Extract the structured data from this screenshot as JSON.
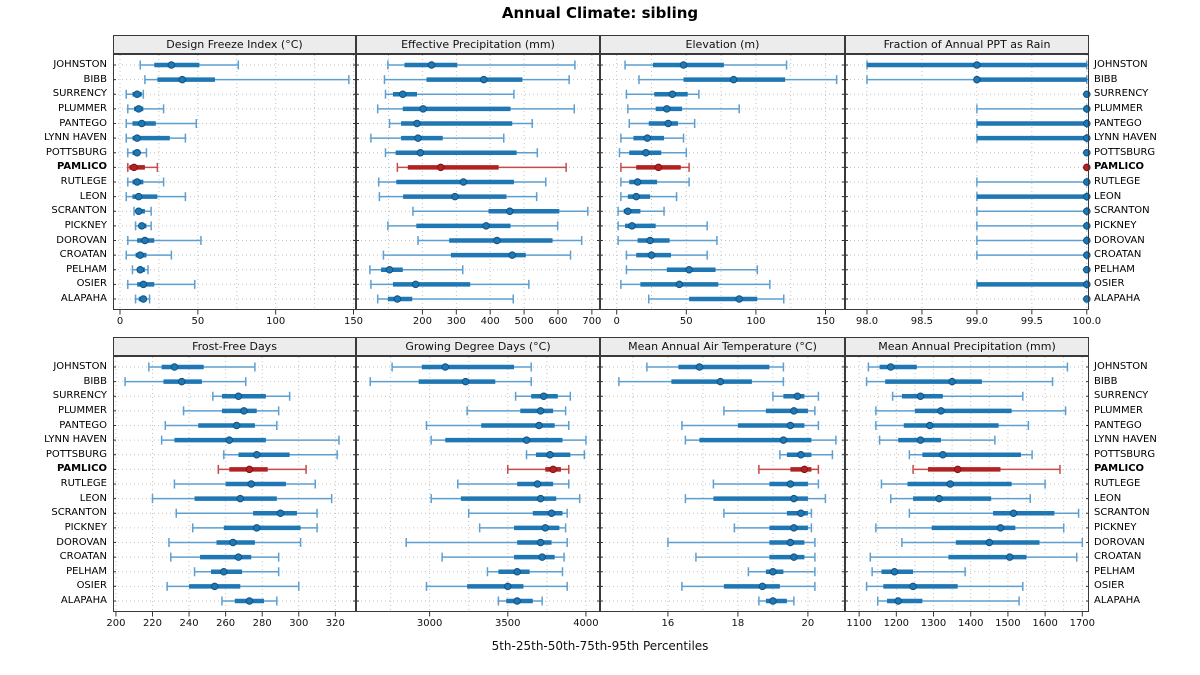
{
  "title": "Annual Climate: sibling",
  "caption": "5th-25th-50th-75th-95th Percentiles",
  "percentile_labels": [
    "5th",
    "25th",
    "50th",
    "75th",
    "95th"
  ],
  "sites": [
    "JOHNSTON",
    "BIBB",
    "SURRENCY",
    "PLUMMER",
    "PANTEGO",
    "LYNN HAVEN",
    "POTTSBURG",
    "PAMLICO",
    "RUTLEGE",
    "LEON",
    "SCRANTON",
    "PICKNEY",
    "DOROVAN",
    "CROATAN",
    "PELHAM",
    "OSIER",
    "ALAPAHA"
  ],
  "highlight_site": "PAMLICO",
  "colors": {
    "series": "#1f77b4",
    "series_whisker": "#5d9fd0",
    "series_dot_stroke": "#10527f",
    "highlight": "#b22222",
    "highlight_whisker": "#c24b4b",
    "highlight_dot_stroke": "#7f1414",
    "strip_bg": "#ececec",
    "grid": "#c2c2c2",
    "border": "#3a3a3a",
    "tick": "#333333"
  },
  "chart_data": {
    "type": "dotplot-trellis",
    "note": "each site row = [p5, p25, p50, p75, p95]",
    "panels": [
      {
        "title": "Design Freeze Index (°C)",
        "row": 0,
        "col": 0,
        "xlim": [
          -4.5,
          151.6
        ],
        "ticks": [
          0,
          50,
          100,
          150
        ],
        "tick_labels": [
          "0",
          "50",
          "100",
          "150"
        ],
        "grid_start": 0,
        "grid_step": 25,
        "values": [
          [
            13,
            22,
            33,
            51,
            76
          ],
          [
            16,
            24,
            40,
            61,
            147
          ],
          [
            4,
            8,
            11,
            14,
            15
          ],
          [
            5,
            9,
            12,
            15,
            28
          ],
          [
            4,
            8,
            14,
            23,
            49
          ],
          [
            4,
            8,
            11,
            32,
            42
          ],
          [
            5,
            8,
            11,
            13,
            17
          ],
          [
            5,
            6,
            9,
            16,
            24
          ],
          [
            5,
            8,
            11,
            15,
            28
          ],
          [
            4,
            8,
            12,
            24,
            42
          ],
          [
            9,
            10,
            12,
            16,
            20
          ],
          [
            10,
            12,
            14,
            17,
            20
          ],
          [
            5,
            11,
            16,
            22,
            52
          ],
          [
            4,
            10,
            13,
            17,
            33
          ],
          [
            8,
            11,
            13,
            16,
            18
          ],
          [
            5,
            11,
            15,
            22,
            48
          ],
          [
            10,
            12,
            15,
            17,
            19
          ]
        ]
      },
      {
        "title": "Effective Precipitation (mm)",
        "row": 0,
        "col": 1,
        "xlim": [
          4,
          724
        ],
        "ticks": [
          200,
          300,
          400,
          500,
          600,
          700
        ],
        "tick_labels": [
          "200",
          "300",
          "400",
          "500",
          "600",
          "700"
        ],
        "grid_start": 100,
        "grid_step": 100,
        "values": [
          [
            98,
            147,
            227,
            303,
            650
          ],
          [
            88,
            212,
            381,
            495,
            633
          ],
          [
            91,
            113,
            142,
            184,
            470
          ],
          [
            68,
            142,
            202,
            460,
            648
          ],
          [
            103,
            137,
            184,
            465,
            524
          ],
          [
            48,
            137,
            187,
            260,
            440
          ],
          [
            91,
            121,
            194,
            478,
            539
          ],
          [
            126,
            157,
            254,
            425,
            624
          ],
          [
            71,
            123,
            321,
            470,
            564
          ],
          [
            73,
            143,
            296,
            448,
            537
          ],
          [
            172,
            395,
            458,
            604,
            688
          ],
          [
            98,
            182,
            388,
            460,
            599
          ],
          [
            187,
            279,
            420,
            584,
            670
          ],
          [
            85,
            284,
            465,
            505,
            637
          ],
          [
            45,
            78,
            103,
            142,
            319
          ],
          [
            48,
            113,
            180,
            341,
            514
          ],
          [
            68,
            98,
            126,
            170,
            468
          ]
        ]
      },
      {
        "title": "Elevation (m)",
        "row": 0,
        "col": 2,
        "xlim": [
          -12,
          164
        ],
        "ticks": [
          0,
          50,
          100,
          150
        ],
        "tick_labels": [
          "0",
          "50",
          "100",
          "150"
        ],
        "grid_start": 0,
        "grid_step": 25,
        "values": [
          [
            6,
            26,
            48,
            77,
            122
          ],
          [
            16,
            48,
            84,
            121,
            158
          ],
          [
            7,
            27,
            40,
            51,
            59
          ],
          [
            8,
            28,
            36,
            47,
            88
          ],
          [
            9,
            23,
            37,
            44,
            56
          ],
          [
            3,
            12,
            22,
            34,
            48
          ],
          [
            2,
            9,
            21,
            32,
            50
          ],
          [
            3,
            14,
            30,
            46,
            52
          ],
          [
            3,
            9,
            15,
            29,
            52
          ],
          [
            3,
            8,
            14,
            24,
            43
          ],
          [
            1,
            5,
            8,
            17,
            34
          ],
          [
            1,
            6,
            11,
            28,
            65
          ],
          [
            1,
            15,
            24,
            38,
            72
          ],
          [
            7,
            14,
            25,
            39,
            65
          ],
          [
            7,
            36,
            52,
            71,
            101
          ],
          [
            3,
            17,
            45,
            73,
            110
          ],
          [
            23,
            52,
            88,
            101,
            120
          ]
        ]
      },
      {
        "title": "Fraction of Annual PPT as Rain",
        "row": 0,
        "col": 3,
        "xlim": [
          97.8,
          100.02
        ],
        "ticks": [
          98.0,
          98.5,
          99.0,
          99.5,
          100.0
        ],
        "tick_labels": [
          "98.0",
          "98.5",
          "99.0",
          "99.5",
          "100.0"
        ],
        "grid_start": 98.0,
        "grid_step": 0.5,
        "values": [
          [
            98.0,
            98.0,
            99.0,
            100.0,
            100.0
          ],
          [
            98.0,
            99.0,
            99.0,
            100.0,
            100.0
          ],
          [
            100,
            100,
            100,
            100,
            100
          ],
          [
            99.0,
            100.0,
            100.0,
            100.0,
            100.0
          ],
          [
            99.0,
            99.0,
            100.0,
            100.0,
            100.0
          ],
          [
            99.0,
            99.0,
            100.0,
            100.0,
            100.0
          ],
          [
            100,
            100,
            100,
            100,
            100
          ],
          [
            100,
            100,
            100,
            100,
            100
          ],
          [
            99.0,
            100.0,
            100.0,
            100.0,
            100.0
          ],
          [
            99.0,
            99.0,
            100.0,
            100.0,
            100.0
          ],
          [
            99.0,
            100.0,
            100.0,
            100.0,
            100.0
          ],
          [
            99.0,
            100.0,
            100.0,
            100.0,
            100.0
          ],
          [
            99.0,
            100.0,
            100.0,
            100.0,
            100.0
          ],
          [
            99.0,
            100.0,
            100.0,
            100.0,
            100.0
          ],
          [
            100,
            100,
            100,
            100,
            100
          ],
          [
            99.0,
            99.0,
            100.0,
            100.0,
            100.0
          ],
          [
            100,
            100,
            100,
            100,
            100
          ]
        ]
      },
      {
        "title": "Frost-Free Days",
        "row": 1,
        "col": 0,
        "xlim": [
          198.4,
          331.3
        ],
        "ticks": [
          200,
          220,
          240,
          260,
          280,
          300,
          320
        ],
        "tick_labels": [
          "200",
          "220",
          "240",
          "260",
          "280",
          "300",
          "320"
        ],
        "grid_start": 200,
        "grid_step": 20,
        "values": [
          [
            218,
            225,
            232,
            248,
            276
          ],
          [
            205,
            226,
            236,
            247,
            271
          ],
          [
            253,
            258,
            267,
            282,
            295
          ],
          [
            237,
            258,
            270,
            277,
            289
          ],
          [
            227,
            245,
            266,
            276,
            288
          ],
          [
            225,
            232,
            262,
            282,
            322
          ],
          [
            259,
            267,
            277,
            295,
            321
          ],
          [
            256,
            262,
            273,
            283,
            304
          ],
          [
            232,
            260,
            274,
            293,
            309
          ],
          [
            220,
            243,
            268,
            288,
            318
          ],
          [
            233,
            275,
            290,
            299,
            310
          ],
          [
            242,
            259,
            277,
            301,
            310
          ],
          [
            229,
            255,
            264,
            276,
            301
          ],
          [
            230,
            246,
            267,
            274,
            289
          ],
          [
            243,
            252,
            259,
            269,
            289
          ],
          [
            228,
            240,
            254,
            268,
            300
          ],
          [
            258,
            265,
            273,
            281,
            288
          ]
        ]
      },
      {
        "title": "Growing Degree Days (°C)",
        "row": 1,
        "col": 1,
        "xlim": [
          2529,
          4090
        ],
        "ticks": [
          3000,
          3500,
          4000
        ],
        "tick_labels": [
          "3000",
          "3500",
          "4000"
        ],
        "grid_start": 2750,
        "grid_step": 250,
        "values": [
          [
            2760,
            2950,
            3100,
            3540,
            3650
          ],
          [
            2620,
            2930,
            3230,
            3420,
            3650
          ],
          [
            3550,
            3650,
            3730,
            3820,
            3900
          ],
          [
            3240,
            3580,
            3710,
            3790,
            3870
          ],
          [
            2980,
            3330,
            3700,
            3800,
            3890
          ],
          [
            3010,
            3100,
            3620,
            3850,
            4000
          ],
          [
            3620,
            3680,
            3770,
            3900,
            3990
          ],
          [
            3500,
            3740,
            3790,
            3840,
            3890
          ],
          [
            3180,
            3560,
            3690,
            3790,
            3890
          ],
          [
            3010,
            3200,
            3710,
            3810,
            3960
          ],
          [
            3250,
            3660,
            3780,
            3850,
            3880
          ],
          [
            3320,
            3540,
            3740,
            3830,
            3870
          ],
          [
            2850,
            3560,
            3710,
            3780,
            3880
          ],
          [
            3080,
            3540,
            3720,
            3800,
            3860
          ],
          [
            3370,
            3440,
            3560,
            3640,
            3850
          ],
          [
            2980,
            3240,
            3500,
            3600,
            3880
          ],
          [
            3440,
            3490,
            3560,
            3660,
            3720
          ]
        ]
      },
      {
        "title": "Mean Annual Air Temperature (°C)",
        "row": 1,
        "col": 2,
        "xlim": [
          14.06,
          21.06
        ],
        "ticks": [
          16,
          18,
          20
        ],
        "tick_labels": [
          "16",
          "18",
          "20"
        ],
        "grid_start": 15,
        "grid_step": 1,
        "values": [
          [
            15.4,
            16.3,
            16.9,
            18.9,
            19.3
          ],
          [
            14.6,
            16.1,
            17.5,
            18.4,
            19.3
          ],
          [
            19.0,
            19.3,
            19.7,
            19.9,
            20.3
          ],
          [
            17.6,
            18.8,
            19.6,
            20.0,
            20.2
          ],
          [
            16.4,
            18.0,
            19.5,
            19.9,
            20.3
          ],
          [
            16.5,
            16.9,
            19.3,
            20.1,
            20.8
          ],
          [
            19.2,
            19.4,
            19.8,
            20.1,
            20.7
          ],
          [
            18.6,
            19.5,
            19.9,
            20.1,
            20.3
          ],
          [
            17.3,
            18.9,
            19.5,
            20.0,
            20.3
          ],
          [
            16.5,
            17.3,
            19.6,
            20.0,
            20.5
          ],
          [
            17.6,
            19.4,
            19.8,
            20.0,
            20.1
          ],
          [
            17.9,
            18.9,
            19.6,
            20.0,
            20.1
          ],
          [
            16.0,
            18.9,
            19.5,
            19.9,
            20.2
          ],
          [
            16.8,
            18.9,
            19.6,
            19.9,
            20.2
          ],
          [
            18.3,
            18.8,
            19.0,
            19.3,
            20.2
          ],
          [
            16.4,
            17.6,
            18.7,
            19.2,
            20.2
          ],
          [
            18.6,
            18.8,
            19.0,
            19.4,
            19.6
          ]
        ]
      },
      {
        "title": "Mean Annual Precipitation (mm)",
        "row": 1,
        "col": 3,
        "xlim": [
          1062,
          1718
        ],
        "ticks": [
          1100,
          1200,
          1300,
          1400,
          1500,
          1600,
          1700
        ],
        "tick_labels": [
          "1100",
          "1200",
          "1300",
          "1400",
          "1500",
          "1600",
          "1700"
        ],
        "grid_start": 1100,
        "grid_step": 50,
        "values": [
          [
            1125,
            1155,
            1185,
            1255,
            1660
          ],
          [
            1120,
            1170,
            1350,
            1430,
            1620
          ],
          [
            1190,
            1215,
            1265,
            1325,
            1540
          ],
          [
            1145,
            1250,
            1320,
            1510,
            1655
          ],
          [
            1145,
            1220,
            1290,
            1475,
            1555
          ],
          [
            1155,
            1205,
            1265,
            1320,
            1465
          ],
          [
            1235,
            1270,
            1325,
            1535,
            1565
          ],
          [
            1245,
            1285,
            1365,
            1480,
            1640
          ],
          [
            1160,
            1230,
            1345,
            1510,
            1600
          ],
          [
            1185,
            1245,
            1315,
            1455,
            1560
          ],
          [
            1235,
            1460,
            1515,
            1625,
            1690
          ],
          [
            1145,
            1295,
            1480,
            1520,
            1650
          ],
          [
            1215,
            1360,
            1450,
            1585,
            1700
          ],
          [
            1130,
            1340,
            1505,
            1550,
            1685
          ],
          [
            1135,
            1160,
            1195,
            1245,
            1385
          ],
          [
            1120,
            1165,
            1245,
            1365,
            1540
          ],
          [
            1150,
            1175,
            1205,
            1270,
            1530
          ]
        ]
      }
    ]
  }
}
